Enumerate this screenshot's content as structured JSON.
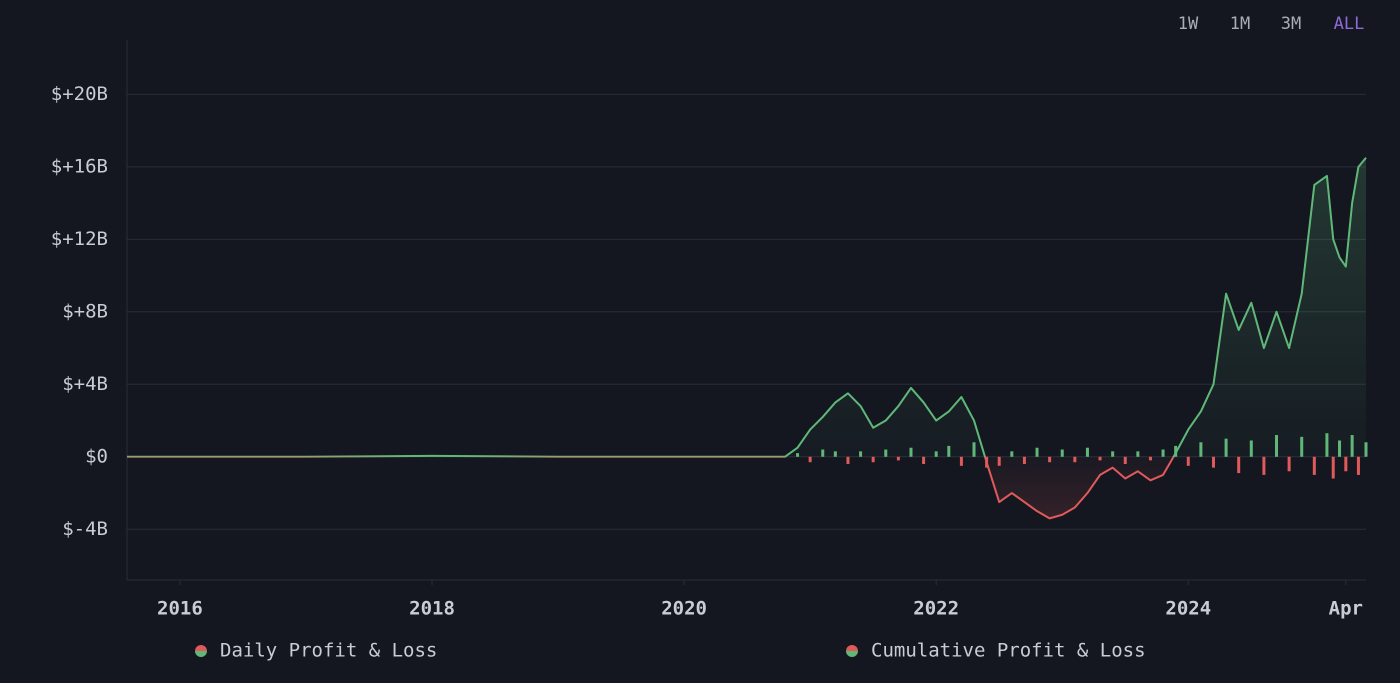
{
  "chart_data": {
    "type": "line",
    "ranges": [
      "1W",
      "1M",
      "3M",
      "ALL"
    ],
    "active_range": 3,
    "x": [
      2015.58,
      2017,
      2018,
      2019,
      2020,
      2020.8,
      2020.9,
      2021.0,
      2021.1,
      2021.2,
      2021.3,
      2021.4,
      2021.5,
      2021.6,
      2021.7,
      2021.8,
      2021.9,
      2022.0,
      2022.1,
      2022.2,
      2022.3,
      2022.4,
      2022.5,
      2022.6,
      2022.7,
      2022.8,
      2022.9,
      2023.0,
      2023.1,
      2023.2,
      2023.3,
      2023.4,
      2023.5,
      2023.6,
      2023.7,
      2023.8,
      2023.9,
      2024.0,
      2024.1,
      2024.2,
      2024.3,
      2024.4,
      2024.5,
      2024.6,
      2024.7,
      2024.8,
      2024.9,
      2025.0,
      2025.1,
      2025.15,
      2025.2,
      2025.25,
      2025.3,
      2025.35,
      2025.41
    ],
    "series": [
      {
        "name": "Daily Profit & Loss",
        "kind": "bar",
        "values": [
          null,
          null,
          null,
          null,
          null,
          null,
          0.2,
          -0.3,
          0.4,
          0.3,
          -0.4,
          0.3,
          -0.3,
          0.4,
          -0.2,
          0.5,
          -0.4,
          0.3,
          0.6,
          -0.5,
          0.8,
          -0.6,
          -0.5,
          0.3,
          -0.4,
          0.5,
          -0.3,
          0.4,
          -0.3,
          0.5,
          -0.2,
          0.3,
          -0.4,
          0.3,
          -0.2,
          0.4,
          0.6,
          -0.5,
          0.8,
          -0.6,
          1.0,
          -0.9,
          0.9,
          -1.0,
          1.2,
          -0.8,
          1.1,
          -1.0,
          1.3,
          -1.2,
          0.9,
          -0.8,
          1.2,
          -1.0,
          0.8
        ]
      },
      {
        "name": "Cumulative Profit & Loss",
        "kind": "line",
        "values": [
          0,
          0,
          0.05,
          0,
          0,
          0,
          0.5,
          1.5,
          2.2,
          3.0,
          3.5,
          2.8,
          1.6,
          2.0,
          2.8,
          3.8,
          3.0,
          2.0,
          2.5,
          3.3,
          2.0,
          -0.3,
          -2.5,
          -2.0,
          -2.5,
          -3.0,
          -3.4,
          -3.2,
          -2.8,
          -2.0,
          -1.0,
          -0.6,
          -1.2,
          -0.8,
          -1.3,
          -1.0,
          0.2,
          1.5,
          2.5,
          4.0,
          9.0,
          7.0,
          8.5,
          6.0,
          8.0,
          6.0,
          9.0,
          15.0,
          15.5,
          12.0,
          11.0,
          10.5,
          14.0,
          16.0,
          16.5
        ]
      }
    ],
    "positive_color": "#5fb878",
    "negative_color": "#e05a5a",
    "xlim": [
      2015.58,
      2025.41
    ],
    "xticks": [
      2016,
      2018,
      2020,
      2022,
      2024,
      {
        "value": 2025.25,
        "label": "Apr"
      }
    ],
    "ylim": [
      -6.8,
      23
    ],
    "yticks": [
      {
        "value": -4,
        "label": "$-4B"
      },
      {
        "value": 0,
        "label": "$0"
      },
      {
        "value": 4,
        "label": "$+4B"
      },
      {
        "value": 8,
        "label": "$+8B"
      },
      {
        "value": 12,
        "label": "$+12B"
      },
      {
        "value": 16,
        "label": "$+16B"
      },
      {
        "value": 20,
        "label": "$+20B"
      }
    ],
    "grid": true
  }
}
